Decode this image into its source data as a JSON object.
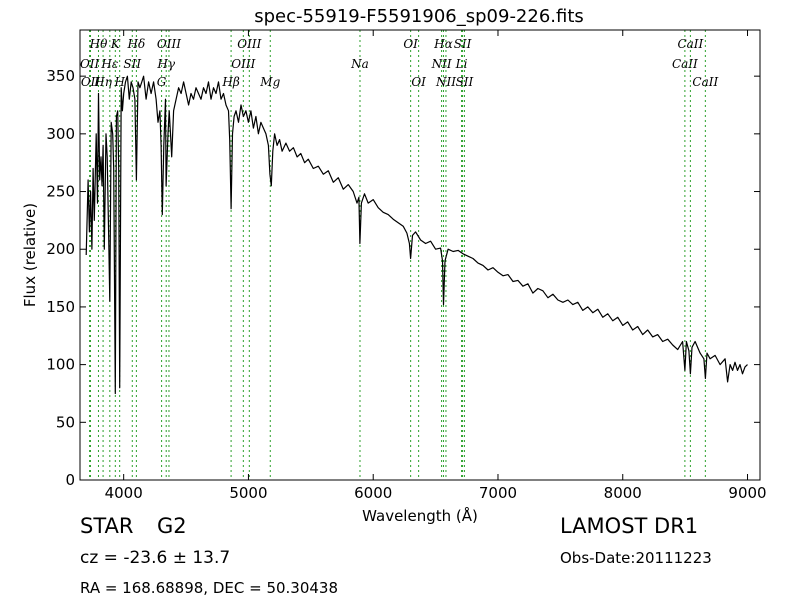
{
  "chart_data": {
    "type": "line",
    "title": "spec-55919-F5591906_sp09-226.fits",
    "xlabel": "Wavelength (Å)",
    "ylabel": "Flux (relative)",
    "xlim": [
      3650,
      9100
    ],
    "ylim": [
      0,
      390
    ],
    "xticks": [
      4000,
      5000,
      6000,
      7000,
      8000,
      9000
    ],
    "yticks": [
      0,
      50,
      100,
      150,
      200,
      250,
      300,
      350
    ],
    "grid": false,
    "line_color": "#000000",
    "marker_color": "#2ca02c",
    "series": [
      {
        "points": [
          [
            3700,
            195
          ],
          [
            3715,
            260
          ],
          [
            3725,
            215
          ],
          [
            3735,
            250
          ],
          [
            3745,
            200
          ],
          [
            3755,
            270
          ],
          [
            3765,
            225
          ],
          [
            3780,
            300
          ],
          [
            3790,
            240
          ],
          [
            3798,
            335
          ],
          [
            3808,
            260
          ],
          [
            3818,
            280
          ],
          [
            3826,
            255
          ],
          [
            3835,
            290
          ],
          [
            3845,
            200
          ],
          [
            3858,
            300
          ],
          [
            3868,
            280
          ],
          [
            3880,
            210
          ],
          [
            3889,
            155
          ],
          [
            3900,
            310
          ],
          [
            3912,
            300
          ],
          [
            3920,
            270
          ],
          [
            3933,
            75
          ],
          [
            3942,
            315
          ],
          [
            3952,
            320
          ],
          [
            3960,
            270
          ],
          [
            3968,
            80
          ],
          [
            3980,
            340
          ],
          [
            3990,
            320
          ],
          [
            4000,
            335
          ],
          [
            4015,
            345
          ],
          [
            4030,
            350
          ],
          [
            4045,
            330
          ],
          [
            4060,
            345
          ],
          [
            4075,
            340
          ],
          [
            4090,
            330
          ],
          [
            4102,
            260
          ],
          [
            4115,
            345
          ],
          [
            4130,
            340
          ],
          [
            4145,
            345
          ],
          [
            4160,
            350
          ],
          [
            4180,
            330
          ],
          [
            4200,
            345
          ],
          [
            4220,
            335
          ],
          [
            4240,
            345
          ],
          [
            4260,
            330
          ],
          [
            4275,
            310
          ],
          [
            4290,
            320
          ],
          [
            4300,
            290
          ],
          [
            4310,
            230
          ],
          [
            4322,
            290
          ],
          [
            4335,
            330
          ],
          [
            4340,
            255
          ],
          [
            4355,
            300
          ],
          [
            4365,
            320
          ],
          [
            4375,
            300
          ],
          [
            4385,
            280
          ],
          [
            4400,
            320
          ],
          [
            4420,
            330
          ],
          [
            4440,
            340
          ],
          [
            4460,
            335
          ],
          [
            4480,
            345
          ],
          [
            4500,
            335
          ],
          [
            4520,
            325
          ],
          [
            4540,
            335
          ],
          [
            4560,
            330
          ],
          [
            4580,
            340
          ],
          [
            4600,
            335
          ],
          [
            4620,
            330
          ],
          [
            4640,
            340
          ],
          [
            4660,
            335
          ],
          [
            4680,
            345
          ],
          [
            4700,
            330
          ],
          [
            4720,
            340
          ],
          [
            4740,
            335
          ],
          [
            4760,
            345
          ],
          [
            4780,
            330
          ],
          [
            4800,
            335
          ],
          [
            4820,
            325
          ],
          [
            4840,
            320
          ],
          [
            4850,
            295
          ],
          [
            4861,
            235
          ],
          [
            4872,
            300
          ],
          [
            4885,
            315
          ],
          [
            4900,
            320
          ],
          [
            4920,
            310
          ],
          [
            4940,
            325
          ],
          [
            4960,
            315
          ],
          [
            4980,
            320
          ],
          [
            5000,
            310
          ],
          [
            5020,
            320
          ],
          [
            5040,
            305
          ],
          [
            5060,
            315
          ],
          [
            5080,
            300
          ],
          [
            5100,
            310
          ],
          [
            5120,
            305
          ],
          [
            5140,
            300
          ],
          [
            5160,
            290
          ],
          [
            5172,
            265
          ],
          [
            5183,
            255
          ],
          [
            5195,
            285
          ],
          [
            5210,
            300
          ],
          [
            5230,
            290
          ],
          [
            5250,
            295
          ],
          [
            5270,
            285
          ],
          [
            5300,
            292
          ],
          [
            5330,
            285
          ],
          [
            5360,
            288
          ],
          [
            5390,
            280
          ],
          [
            5420,
            283
          ],
          [
            5450,
            275
          ],
          [
            5480,
            278
          ],
          [
            5520,
            270
          ],
          [
            5560,
            272
          ],
          [
            5600,
            265
          ],
          [
            5640,
            268
          ],
          [
            5680,
            258
          ],
          [
            5720,
            262
          ],
          [
            5760,
            252
          ],
          [
            5800,
            256
          ],
          [
            5840,
            250
          ],
          [
            5870,
            240
          ],
          [
            5885,
            245
          ],
          [
            5893,
            205
          ],
          [
            5905,
            240
          ],
          [
            5930,
            248
          ],
          [
            5960,
            240
          ],
          [
            6000,
            243
          ],
          [
            6040,
            236
          ],
          [
            6080,
            232
          ],
          [
            6120,
            230
          ],
          [
            6160,
            226
          ],
          [
            6200,
            223
          ],
          [
            6240,
            220
          ],
          [
            6270,
            214
          ],
          [
            6290,
            205
          ],
          [
            6300,
            192
          ],
          [
            6315,
            212
          ],
          [
            6340,
            215
          ],
          [
            6380,
            208
          ],
          [
            6420,
            205
          ],
          [
            6460,
            207
          ],
          [
            6500,
            200
          ],
          [
            6540,
            201
          ],
          [
            6555,
            190
          ],
          [
            6563,
            152
          ],
          [
            6575,
            190
          ],
          [
            6600,
            200
          ],
          [
            6640,
            198
          ],
          [
            6680,
            199
          ],
          [
            6720,
            196
          ],
          [
            6760,
            194
          ],
          [
            6800,
            192
          ],
          [
            6840,
            188
          ],
          [
            6880,
            186
          ],
          [
            6920,
            182
          ],
          [
            6960,
            184
          ],
          [
            7000,
            180
          ],
          [
            7040,
            177
          ],
          [
            7080,
            178
          ],
          [
            7120,
            172
          ],
          [
            7160,
            173
          ],
          [
            7200,
            168
          ],
          [
            7240,
            170
          ],
          [
            7280,
            162
          ],
          [
            7320,
            166
          ],
          [
            7360,
            164
          ],
          [
            7400,
            158
          ],
          [
            7440,
            161
          ],
          [
            7480,
            156
          ],
          [
            7520,
            154
          ],
          [
            7560,
            156
          ],
          [
            7600,
            152
          ],
          [
            7640,
            154
          ],
          [
            7680,
            147
          ],
          [
            7720,
            150
          ],
          [
            7760,
            145
          ],
          [
            7800,
            148
          ],
          [
            7840,
            141
          ],
          [
            7880,
            144
          ],
          [
            7920,
            138
          ],
          [
            7960,
            141
          ],
          [
            8000,
            134
          ],
          [
            8040,
            137
          ],
          [
            8080,
            130
          ],
          [
            8120,
            133
          ],
          [
            8160,
            126
          ],
          [
            8200,
            130
          ],
          [
            8240,
            124
          ],
          [
            8280,
            126
          ],
          [
            8320,
            120
          ],
          [
            8360,
            122
          ],
          [
            8400,
            117
          ],
          [
            8440,
            113
          ],
          [
            8480,
            120
          ],
          [
            8498,
            95
          ],
          [
            8510,
            120
          ],
          [
            8530,
            112
          ],
          [
            8542,
            92
          ],
          [
            8555,
            115
          ],
          [
            8580,
            120
          ],
          [
            8620,
            110
          ],
          [
            8650,
            105
          ],
          [
            8662,
            88
          ],
          [
            8675,
            110
          ],
          [
            8700,
            105
          ],
          [
            8740,
            108
          ],
          [
            8780,
            100
          ],
          [
            8820,
            105
          ],
          [
            8840,
            85
          ],
          [
            8860,
            100
          ],
          [
            8880,
            95
          ],
          [
            8900,
            102
          ],
          [
            8920,
            95
          ],
          [
            8940,
            100
          ],
          [
            8960,
            92
          ],
          [
            8980,
            98
          ],
          [
            9000,
            100
          ]
        ]
      }
    ],
    "line_markers": [
      {
        "wavelength": 3727,
        "label": "OII",
        "tier": 1
      },
      {
        "wavelength": 3734,
        "label": "OII",
        "tier": 2
      },
      {
        "wavelength": 3798,
        "label": "Hθ",
        "tier": 0
      },
      {
        "wavelength": 3835,
        "label": "Hη",
        "tier": 2
      },
      {
        "wavelength": 3889,
        "label": "Hε",
        "tier": 1
      },
      {
        "wavelength": 3933,
        "label": "K",
        "tier": 0
      },
      {
        "wavelength": 3968,
        "label": "H",
        "tier": 2
      },
      {
        "wavelength": 4069,
        "label": "SII",
        "tier": 1
      },
      {
        "wavelength": 4102,
        "label": "Hδ",
        "tier": 0
      },
      {
        "wavelength": 4304,
        "label": "G",
        "tier": 2
      },
      {
        "wavelength": 4341,
        "label": "Hγ",
        "tier": 1
      },
      {
        "wavelength": 4363,
        "label": "OIII",
        "tier": 0
      },
      {
        "wavelength": 4861,
        "label": "Hβ",
        "tier": 2
      },
      {
        "wavelength": 4959,
        "label": "OIII",
        "tier": 1
      },
      {
        "wavelength": 5007,
        "label": "OIII",
        "tier": 0
      },
      {
        "wavelength": 5175,
        "label": "Mg",
        "tier": 2
      },
      {
        "wavelength": 5894,
        "label": "Na",
        "tier": 1
      },
      {
        "wavelength": 6300,
        "label": "OI",
        "tier": 0
      },
      {
        "wavelength": 6364,
        "label": "OI",
        "tier": 2
      },
      {
        "wavelength": 6548,
        "label": "NII",
        "tier": 1
      },
      {
        "wavelength": 6563,
        "label": "Hα",
        "tier": 0
      },
      {
        "wavelength": 6583,
        "label": "NII",
        "tier": 2
      },
      {
        "wavelength": 6708,
        "label": "Li",
        "tier": 1
      },
      {
        "wavelength": 6716,
        "label": "SII",
        "tier": 0
      },
      {
        "wavelength": 6731,
        "label": "SII",
        "tier": 2
      },
      {
        "wavelength": 8498,
        "label": "CaII",
        "tier": 1
      },
      {
        "wavelength": 8542,
        "label": "CaII",
        "tier": 0
      },
      {
        "wavelength": 8662,
        "label": "CaII",
        "tier": 2
      }
    ]
  },
  "info": {
    "object_class": "STAR",
    "subclass": "G2",
    "redshift": "cz = -23.6 ± 13.7",
    "coordinates": "RA = 168.68898, DEC = 50.30438",
    "survey": "LAMOST DR1",
    "obs_date": "Obs-Date:20111223"
  }
}
